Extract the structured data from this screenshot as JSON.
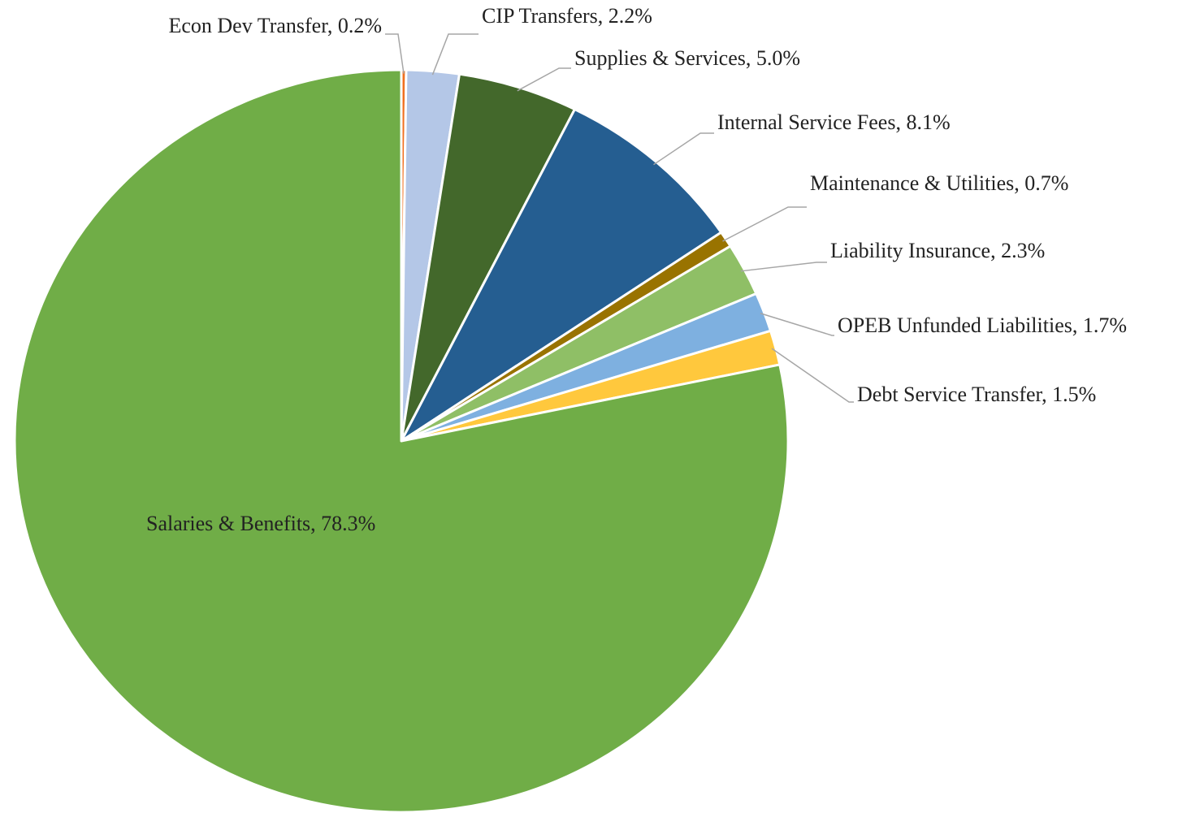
{
  "chart_data": {
    "type": "pie",
    "labels": [
      "Econ Dev Transfer, 0.2%",
      "CIP Transfers, 2.2%",
      "Supplies & Services, 5.0%",
      "Internal Service Fees, 8.1%",
      "Maintenance & Utilities, 0.7%",
      "Liability Insurance, 2.3%",
      "OPEB Unfunded Liabilities, 1.7%",
      "Debt Service Transfer, 1.5%",
      "Salaries & Benefits, 78.3%"
    ],
    "values": [
      0.2,
      2.2,
      5.0,
      8.1,
      0.7,
      2.3,
      1.7,
      1.5,
      78.3
    ],
    "colors": [
      "#f07020",
      "#b4c7e7",
      "#43682b",
      "#255e91",
      "#997300",
      "#8fbf66",
      "#7eb0e0",
      "#ffc83d",
      "#70ad47"
    ]
  }
}
